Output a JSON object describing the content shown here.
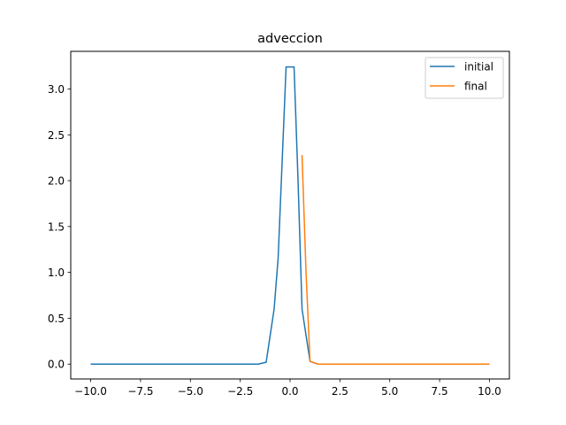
{
  "chart_data": {
    "type": "line",
    "title": "adveccion",
    "xlabel": "",
    "ylabel": "",
    "xlim": [
      -11.0,
      11.0
    ],
    "ylim": [
      -0.162,
      3.41
    ],
    "x_ticks": [
      "−10.0",
      "−7.5",
      "−5.0",
      "−2.5",
      "0.0",
      "2.5",
      "5.0",
      "7.5",
      "10.0"
    ],
    "x_tick_values": [
      -10,
      -7.5,
      -5,
      -2.5,
      0,
      2.5,
      5,
      7.5,
      10
    ],
    "y_ticks": [
      "0.0",
      "0.5",
      "1.0",
      "1.5",
      "2.0",
      "2.5",
      "3.0"
    ],
    "y_tick_values": [
      0,
      0.5,
      1.0,
      1.5,
      2.0,
      2.5,
      3.0
    ],
    "grid": false,
    "legend_position": "upper right",
    "series": [
      {
        "name": "initial",
        "color": "#1f77b4",
        "x": [
          -10.0,
          -1.6,
          -1.2,
          -0.8,
          -0.6,
          -0.2,
          0.2,
          0.4,
          0.6,
          1.0,
          1.4,
          10.0
        ],
        "y": [
          0.0,
          0.0,
          0.02,
          0.6,
          1.15,
          3.24,
          3.24,
          2.0,
          0.6,
          0.03,
          0.0,
          0.0
        ]
      },
      {
        "name": "final",
        "color": "#ff7f0e",
        "x": [
          0.6,
          0.8,
          1.0,
          1.4,
          10.0
        ],
        "y": [
          2.28,
          1.0,
          0.03,
          0.0,
          0.0
        ]
      }
    ]
  }
}
